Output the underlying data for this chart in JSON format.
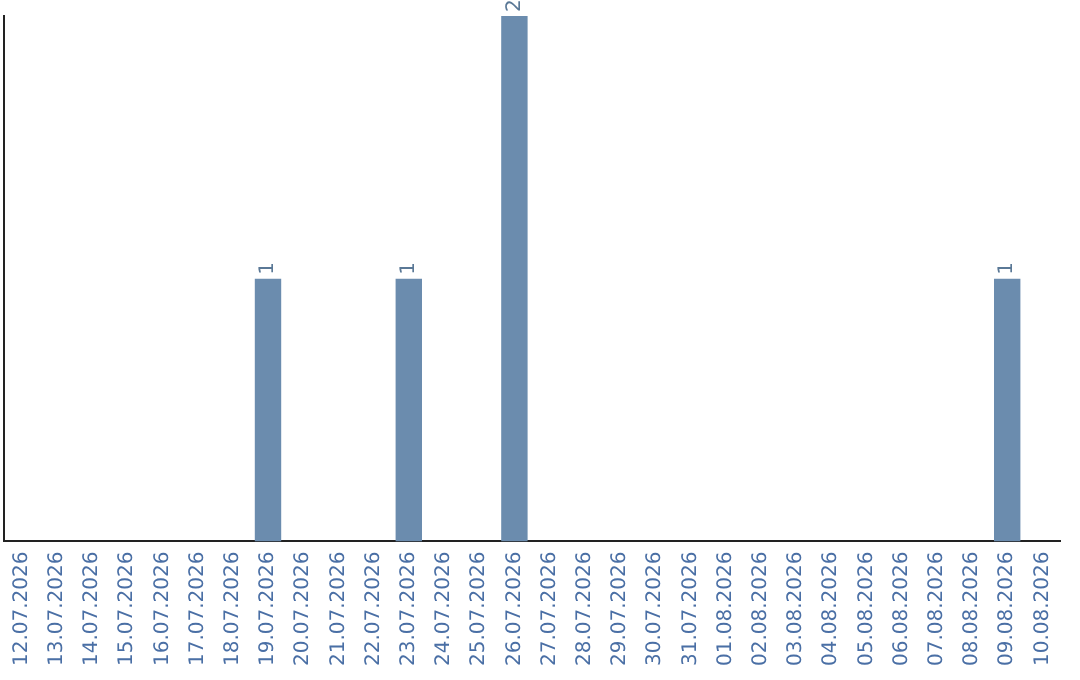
{
  "chart_data": {
    "type": "bar",
    "categories": [
      "12.07.2026",
      "13.07.2026",
      "14.07.2026",
      "15.07.2026",
      "16.07.2026",
      "17.07.2026",
      "18.07.2026",
      "19.07.2026",
      "20.07.2026",
      "21.07.2026",
      "22.07.2026",
      "23.07.2026",
      "24.07.2026",
      "25.07.2026",
      "26.07.2026",
      "27.07.2026",
      "28.07.2026",
      "29.07.2026",
      "30.07.2026",
      "31.07.2026",
      "01.08.2026",
      "02.08.2026",
      "03.08.2026",
      "04.08.2026",
      "05.08.2026",
      "06.08.2026",
      "07.08.2026",
      "08.08.2026",
      "09.08.2026",
      "10.08.2026"
    ],
    "values": [
      0,
      0,
      0,
      0,
      0,
      0,
      0,
      1,
      0,
      0,
      0,
      1,
      0,
      0,
      2,
      0,
      0,
      0,
      0,
      0,
      0,
      0,
      0,
      0,
      0,
      0,
      0,
      0,
      1,
      0
    ],
    "value_labels": [
      null,
      null,
      null,
      null,
      null,
      null,
      null,
      "1",
      null,
      null,
      null,
      "1",
      null,
      null,
      "2",
      null,
      null,
      null,
      null,
      null,
      null,
      null,
      null,
      null,
      null,
      null,
      null,
      null,
      "1",
      null
    ],
    "color": "#6b8cae",
    "grid": false,
    "legend": false,
    "tick_labels": "x"
  }
}
